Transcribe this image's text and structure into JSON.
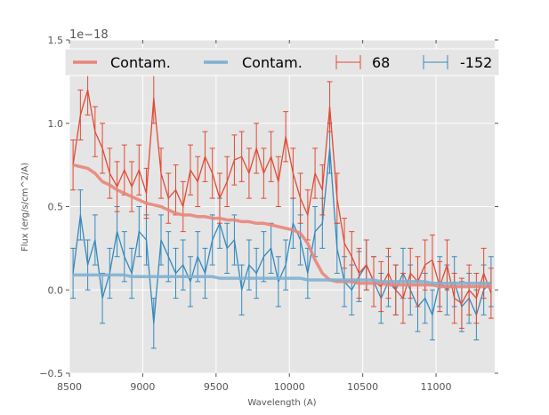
{
  "chart_data": {
    "type": "line",
    "title": "",
    "xlabel": "Wavelength (A)",
    "ylabel": "Flux (erg/s/cm^2/A)",
    "y_offset_label": "1e−18",
    "xlim": [
      8500,
      11400
    ],
    "ylim": [
      -0.5,
      1.5
    ],
    "grid": true,
    "legend_placement": "top",
    "x_ticks": [
      8500,
      9000,
      9500,
      10000,
      10500,
      11000
    ],
    "x_tick_labels": [
      "8500",
      "9000",
      "9500",
      "10000",
      "10500",
      "11000"
    ],
    "y_ticks": [
      -0.5,
      0.0,
      0.5,
      1.0,
      1.5
    ],
    "y_tick_labels": [
      "−0.5",
      "0.0",
      "0.5",
      "1.0",
      "1.5"
    ],
    "colors": {
      "red": "#e24a33",
      "red_contam": "#e8857a",
      "blue": "#348abd",
      "blue_contam": "#7fb0d0",
      "background": "#e5e5e5",
      "grid": "#ffffff"
    },
    "x": [
      8525,
      8575,
      8625,
      8675,
      8725,
      8775,
      8825,
      8875,
      8925,
      8975,
      9025,
      9075,
      9125,
      9175,
      9225,
      9275,
      9325,
      9375,
      9425,
      9475,
      9525,
      9575,
      9625,
      9675,
      9725,
      9775,
      9825,
      9875,
      9925,
      9975,
      10025,
      10075,
      10125,
      10175,
      10225,
      10275,
      10325,
      10375,
      10425,
      10475,
      10525,
      10575,
      10625,
      10675,
      10725,
      10775,
      10825,
      10875,
      10925,
      10975,
      11025,
      11075,
      11125,
      11175,
      11225,
      11275,
      11325,
      11375
    ],
    "series": [
      {
        "name": "68",
        "kind": "errorbar",
        "color": "#e24a33",
        "values": [
          0.75,
          1.05,
          1.2,
          0.95,
          0.85,
          0.7,
          0.62,
          0.72,
          0.62,
          0.72,
          0.58,
          1.15,
          0.7,
          0.55,
          0.6,
          0.5,
          0.72,
          0.65,
          0.8,
          0.7,
          0.55,
          0.65,
          0.78,
          0.8,
          0.7,
          0.85,
          0.7,
          0.8,
          0.65,
          0.92,
          0.7,
          0.55,
          0.45,
          0.7,
          0.6,
          1.1,
          0.55,
          0.28,
          0.2,
          0.1,
          0.15,
          0.05,
          0.02,
          0.1,
          0.0,
          -0.05,
          0.1,
          0.05,
          0.15,
          0.18,
          0.02,
          0.15,
          -0.05,
          -0.08,
          0.0,
          -0.05,
          0.1,
          -0.02
        ],
        "errors": 0.15
      },
      {
        "name": "-152",
        "kind": "errorbar",
        "color": "#348abd",
        "values": [
          0.1,
          0.45,
          0.15,
          0.3,
          -0.05,
          0.1,
          0.35,
          0.2,
          0.1,
          0.35,
          0.3,
          -0.2,
          0.3,
          0.2,
          0.1,
          0.15,
          0.05,
          0.2,
          0.1,
          0.3,
          0.4,
          0.25,
          0.3,
          0.0,
          0.15,
          0.1,
          0.2,
          0.25,
          0.05,
          0.15,
          0.4,
          0.3,
          0.1,
          0.35,
          0.4,
          0.85,
          0.25,
          0.05,
          0.0,
          0.08,
          0.15,
          0.05,
          -0.05,
          0.05,
          0.0,
          0.1,
          0.0,
          -0.1,
          -0.05,
          -0.15,
          0.05,
          0.0,
          0.05,
          -0.1,
          -0.05,
          -0.15,
          0.0,
          0.05
        ],
        "errors": 0.15
      },
      {
        "name": "Contam.",
        "kind": "line",
        "color": "#e8857a",
        "values": [
          0.75,
          0.74,
          0.73,
          0.7,
          0.65,
          0.63,
          0.6,
          0.58,
          0.56,
          0.54,
          0.52,
          0.51,
          0.5,
          0.48,
          0.46,
          0.45,
          0.45,
          0.44,
          0.44,
          0.43,
          0.43,
          0.42,
          0.42,
          0.41,
          0.41,
          0.4,
          0.4,
          0.39,
          0.38,
          0.37,
          0.36,
          0.34,
          0.28,
          0.18,
          0.1,
          0.06,
          0.05,
          0.05,
          0.05,
          0.04,
          0.04,
          0.04,
          0.04,
          0.03,
          0.03,
          0.03,
          0.03,
          0.03,
          0.03,
          0.03,
          0.02,
          0.02,
          0.02,
          0.02,
          0.02,
          0.02,
          0.02,
          0.02
        ]
      },
      {
        "name": "Contam.",
        "kind": "line",
        "color": "#7fb0d0",
        "values": [
          0.09,
          0.09,
          0.09,
          0.09,
          0.09,
          0.09,
          0.09,
          0.09,
          0.08,
          0.08,
          0.08,
          0.08,
          0.08,
          0.08,
          0.08,
          0.08,
          0.08,
          0.08,
          0.08,
          0.08,
          0.07,
          0.07,
          0.07,
          0.07,
          0.07,
          0.07,
          0.07,
          0.07,
          0.07,
          0.07,
          0.07,
          0.07,
          0.06,
          0.06,
          0.06,
          0.06,
          0.06,
          0.06,
          0.06,
          0.06,
          0.06,
          0.06,
          0.05,
          0.05,
          0.05,
          0.05,
          0.05,
          0.05,
          0.05,
          0.04,
          0.04,
          0.04,
          0.04,
          0.04,
          0.04,
          0.04,
          0.04,
          0.04
        ]
      }
    ],
    "legend": [
      {
        "label": "Contam.",
        "kind": "line",
        "color": "#e8857a"
      },
      {
        "label": "Contam.",
        "kind": "line",
        "color": "#7fb0d0"
      },
      {
        "label": "68",
        "kind": "errorbar",
        "color": "#e24a33"
      },
      {
        "label": "-152",
        "kind": "errorbar",
        "color": "#348abd"
      }
    ]
  }
}
